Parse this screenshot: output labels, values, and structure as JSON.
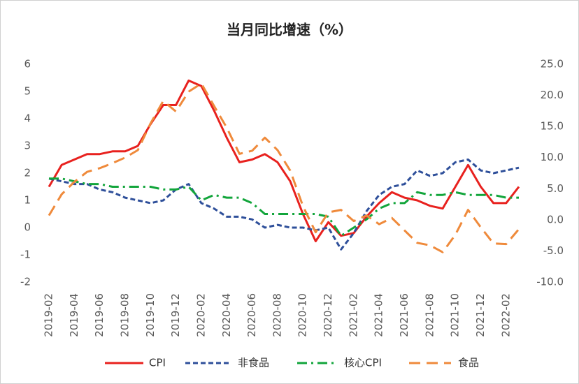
{
  "chart_data": {
    "type": "line",
    "title": "当月同比增速（%）",
    "categories": [
      "2019-02",
      null,
      "2019-04",
      null,
      "2019-06",
      null,
      "2019-08",
      null,
      "2019-10",
      null,
      "2019-12",
      null,
      "2020-02",
      null,
      "2020-04",
      null,
      "2020-06",
      null,
      "2020-08",
      null,
      "2020-10",
      null,
      "2020-12",
      null,
      "2021-02",
      null,
      "2021-04",
      null,
      "2021-06",
      null,
      "2021-08",
      null,
      "2021-10",
      null,
      "2021-12",
      null,
      "2022-02",
      null
    ],
    "series": [
      {
        "name": "CPI",
        "color": "#e8211e",
        "style": "solid",
        "values": [
          1.5,
          2.3,
          2.5,
          2.7,
          2.7,
          2.8,
          2.8,
          3.0,
          3.8,
          4.5,
          4.5,
          5.4,
          5.2,
          4.3,
          3.3,
          2.4,
          2.5,
          2.7,
          2.4,
          1.7,
          0.5,
          -0.5,
          0.2,
          -0.3,
          -0.2,
          0.4,
          0.9,
          1.3,
          1.1,
          1.0,
          0.8,
          0.7,
          1.5,
          2.3,
          1.5,
          0.9,
          0.9,
          1.5
        ]
      },
      {
        "name": "非食品",
        "color": "#2e4f9a",
        "style": "dash",
        "values": [
          1.8,
          1.7,
          1.6,
          1.6,
          1.4,
          1.3,
          1.1,
          1.0,
          0.9,
          1.0,
          1.4,
          1.6,
          0.9,
          0.7,
          0.4,
          0.4,
          0.3,
          0.0,
          0.1,
          0.0,
          0.0,
          -0.1,
          0.0,
          -0.8,
          -0.2,
          0.6,
          1.2,
          1.5,
          1.6,
          2.1,
          1.9,
          2.0,
          2.4,
          2.5,
          2.1,
          2.0,
          2.1,
          2.2
        ]
      },
      {
        "name": "核心CPI",
        "color": "#12a53b",
        "style": "dashdot",
        "values": [
          1.8,
          1.8,
          1.7,
          1.6,
          1.6,
          1.5,
          1.5,
          1.5,
          1.5,
          1.4,
          1.4,
          1.5,
          1.0,
          1.2,
          1.1,
          1.1,
          0.9,
          0.5,
          0.5,
          0.5,
          0.5,
          0.5,
          0.4,
          -0.3,
          0.0,
          0.3,
          0.7,
          0.9,
          0.9,
          1.3,
          1.2,
          1.2,
          1.3,
          1.2,
          1.2,
          1.2,
          1.1,
          1.1
        ]
      },
      {
        "name": "食品",
        "color": "#ef8a3b",
        "style": "longdash",
        "axis": "y2",
        "values": [
          0.7,
          4.1,
          6.1,
          7.7,
          8.3,
          9.1,
          10.0,
          11.2,
          15.5,
          19.1,
          17.4,
          20.6,
          21.9,
          18.3,
          14.8,
          10.6,
          11.1,
          13.2,
          11.2,
          7.9,
          2.2,
          -2.0,
          1.2,
          1.6,
          -0.2,
          0.7,
          -0.7,
          0.3,
          -1.7,
          -3.7,
          -4.1,
          -5.2,
          -2.4,
          1.6,
          -1.2,
          -3.8,
          -3.9,
          -1.5
        ]
      }
    ],
    "ylim": [
      -2,
      6
    ],
    "yticks": [
      -2,
      -1,
      0,
      1,
      2,
      3,
      4,
      5,
      6
    ],
    "y2lim": [
      -10,
      25
    ],
    "y2ticks": [
      {
        "value": -10,
        "label": "-10.0"
      },
      {
        "value": -5,
        "label": "-5.0"
      },
      {
        "value": 0,
        "label": "0.0"
      },
      {
        "value": 5,
        "label": "5.0"
      },
      {
        "value": 10,
        "label": "10.0"
      },
      {
        "value": 15,
        "label": "15.0"
      },
      {
        "value": 20,
        "label": "20.0"
      },
      {
        "value": 25,
        "label": "25.0"
      }
    ],
    "grid": false,
    "legend": "bottom"
  }
}
